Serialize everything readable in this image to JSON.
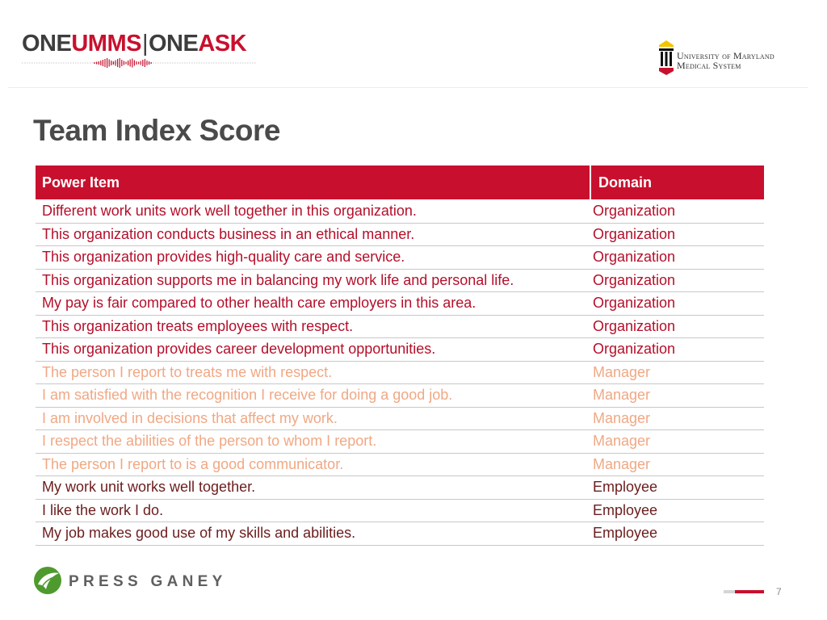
{
  "header": {
    "brand_parts": [
      "ONE",
      "UMMS",
      "|",
      "ONE",
      "ASK"
    ],
    "org_name_line1": "University of Maryland",
    "org_name_line2": "Medical System"
  },
  "title": "Team Index Score",
  "table": {
    "headers": [
      "Power Item",
      "Domain"
    ],
    "rows": [
      {
        "item": "Different work units work well together in this organization.",
        "domain": "Organization",
        "group": "org"
      },
      {
        "item": "This organization conducts business in an ethical manner.",
        "domain": "Organization",
        "group": "org"
      },
      {
        "item": "This organization provides high-quality care and service.",
        "domain": "Organization",
        "group": "org"
      },
      {
        "item": "This organization supports me in balancing my work life and personal life.",
        "domain": "Organization",
        "group": "org"
      },
      {
        "item": "My pay is fair compared to other health care employers in this area.",
        "domain": "Organization",
        "group": "org"
      },
      {
        "item": "This organization treats employees with respect.",
        "domain": "Organization",
        "group": "org"
      },
      {
        "item": "This organization provides career development opportunities.",
        "domain": "Organization",
        "group": "org"
      },
      {
        "item": "The person I report to treats me with respect.",
        "domain": "Manager",
        "group": "mgr"
      },
      {
        "item": "I am satisfied with the recognition I receive for doing a good job.",
        "domain": "Manager",
        "group": "mgr"
      },
      {
        "item": "I am involved in decisions that affect my work.",
        "domain": "Manager",
        "group": "mgr"
      },
      {
        "item": "I respect the abilities of the person to whom I report.",
        "domain": "Manager",
        "group": "mgr"
      },
      {
        "item": "The person I report to is a good communicator.",
        "domain": "Manager",
        "group": "mgr"
      },
      {
        "item": "My work unit works well together.",
        "domain": "Employee",
        "group": "emp"
      },
      {
        "item": "I like the work I do.",
        "domain": "Employee",
        "group": "emp"
      },
      {
        "item": "My job makes good use of my skills and abilities.",
        "domain": "Employee",
        "group": "emp"
      }
    ]
  },
  "footer": {
    "press_ganey": "PRESS GANEY",
    "page_number": "7"
  },
  "colors": {
    "accent_red": "#c8102e",
    "organization_text": "#b50f2a",
    "manager_text": "#f0a884",
    "employee_text": "#6b1d1d",
    "press_ganey_green": "#4e9a2f"
  }
}
